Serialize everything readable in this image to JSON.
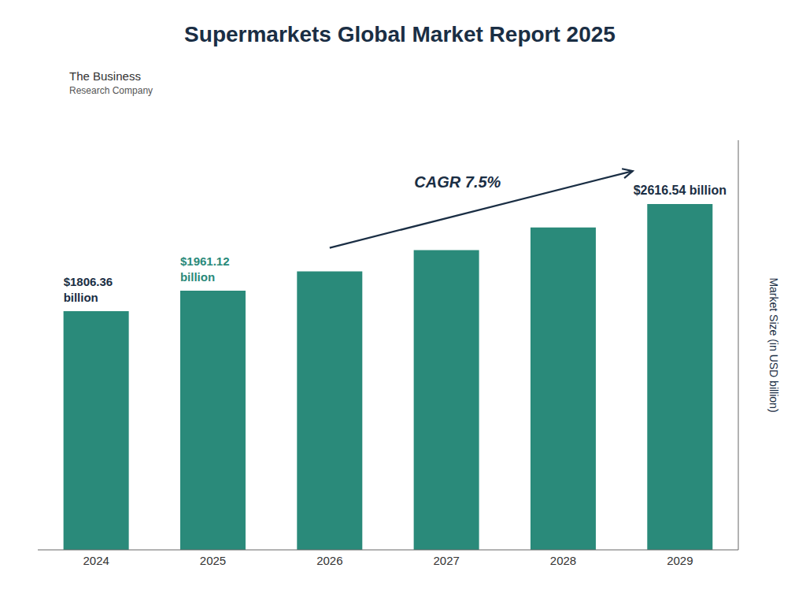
{
  "chart_data": {
    "type": "bar",
    "title": "Supermarkets Global Market Report 2025",
    "ylabel": "Market Size (in USD billion)",
    "categories": [
      "2024",
      "2025",
      "2026",
      "2027",
      "2028",
      "2029"
    ],
    "values": [
      1806.36,
      1961.12,
      2107.0,
      2268.0,
      2440.0,
      2616.54
    ],
    "color": "#2a8a7a",
    "ylim": [
      0,
      3100
    ],
    "tick_labels": "x",
    "annotations": [
      {
        "category": "2024",
        "lines": [
          "$1806.36",
          "billion"
        ],
        "color": "#1a2e44"
      },
      {
        "category": "2025",
        "lines": [
          "$1961.12",
          "billion"
        ],
        "color": "#2a8a7a"
      },
      {
        "category": "2029",
        "lines": [
          "$2616.54 billion"
        ],
        "color": "#1a2e44"
      },
      {
        "text": "CAGR 7.5%",
        "from": "2026",
        "to": "2029",
        "color": "#1a2e44"
      },
      {
        "text": "The Business",
        "color": "#333333"
      },
      {
        "text": "Research Company",
        "color": "#555555"
      }
    ]
  }
}
